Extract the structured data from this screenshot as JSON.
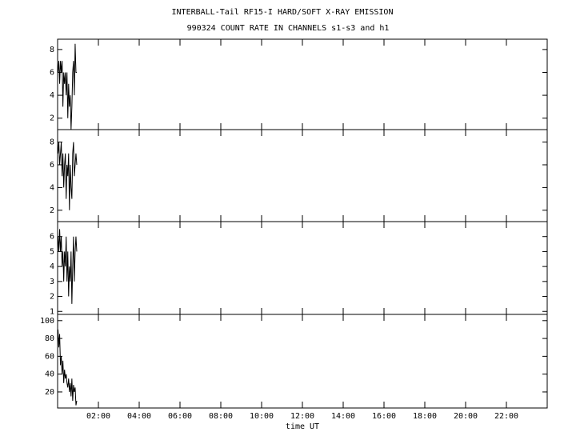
{
  "chart_data": [
    {
      "type": "line",
      "title": "INTERBALL-Tail RF15-I HARD/SOFT X-RAY EMISSION",
      "subtitle": "990324  COUNT RATE IN CHANNELS s1-s3 and h1",
      "x": [
        0.02,
        0.06,
        0.1,
        0.14,
        0.18,
        0.22,
        0.26,
        0.3,
        0.34,
        0.38,
        0.42,
        0.46,
        0.5,
        0.54,
        0.58,
        0.62,
        0.66,
        0.7,
        0.74,
        0.78,
        0.82,
        0.86,
        0.9,
        0.94
      ],
      "values": [
        6,
        7,
        5,
        7,
        6,
        7,
        3,
        6,
        5,
        6,
        4,
        6,
        2,
        5,
        3,
        4,
        1,
        3,
        6,
        7,
        4,
        8.5,
        6,
        6
      ],
      "ylim": [
        1,
        8.9
      ],
      "yticks": [
        2,
        4,
        6,
        8
      ]
    },
    {
      "type": "line",
      "x": [
        0.02,
        0.06,
        0.1,
        0.14,
        0.18,
        0.22,
        0.26,
        0.3,
        0.34,
        0.38,
        0.42,
        0.46,
        0.5,
        0.54,
        0.58,
        0.62,
        0.66,
        0.7,
        0.74,
        0.78,
        0.82,
        0.86,
        0.9,
        0.94
      ],
      "values": [
        7,
        8,
        6,
        7,
        8,
        5,
        7,
        4,
        6,
        7,
        3,
        6,
        5,
        7,
        2,
        6,
        4,
        3,
        7,
        8,
        5,
        6,
        7,
        6
      ],
      "ylim": [
        1,
        9.1
      ],
      "yticks": [
        2,
        4,
        6,
        8
      ]
    },
    {
      "type": "line",
      "x": [
        0.02,
        0.06,
        0.1,
        0.14,
        0.18,
        0.22,
        0.26,
        0.3,
        0.34,
        0.38,
        0.42,
        0.46,
        0.5,
        0.54,
        0.58,
        0.62,
        0.66,
        0.7,
        0.74,
        0.78,
        0.82,
        0.86,
        0.9,
        0.94
      ],
      "values": [
        6,
        5,
        6.5,
        5,
        6,
        4,
        5,
        3,
        5,
        4,
        6,
        3,
        5,
        2,
        4,
        3,
        5,
        1.5,
        4,
        6,
        3,
        5,
        6,
        5
      ],
      "ylim": [
        0.8,
        7
      ],
      "yticks": [
        1,
        2,
        3,
        4,
        5,
        6
      ]
    },
    {
      "type": "line",
      "xlabel": "time UT",
      "x": [
        0.02,
        0.06,
        0.1,
        0.14,
        0.18,
        0.22,
        0.26,
        0.3,
        0.34,
        0.38,
        0.42,
        0.46,
        0.5,
        0.54,
        0.58,
        0.62,
        0.66,
        0.7,
        0.74,
        0.78,
        0.82,
        0.86,
        0.9,
        0.94
      ],
      "values": [
        90,
        70,
        85,
        50,
        60,
        40,
        55,
        30,
        45,
        35,
        40,
        30,
        25,
        35,
        20,
        30,
        15,
        35,
        10,
        28,
        20,
        25,
        5,
        10
      ],
      "ylim": [
        2,
        107
      ],
      "yticks": [
        20,
        40,
        60,
        80,
        100
      ],
      "xlim": [
        0,
        24
      ],
      "xticks": [
        {
          "value": 2,
          "label": "02:00"
        },
        {
          "value": 4,
          "label": "04:00"
        },
        {
          "value": 6,
          "label": "06:00"
        },
        {
          "value": 8,
          "label": "08:00"
        },
        {
          "value": 10,
          "label": "10:00"
        },
        {
          "value": 12,
          "label": "12:00"
        },
        {
          "value": 14,
          "label": "14:00"
        },
        {
          "value": 16,
          "label": "16:00"
        },
        {
          "value": 18,
          "label": "18:00"
        },
        {
          "value": 20,
          "label": "20:00"
        },
        {
          "value": 22,
          "label": "22:00"
        }
      ]
    }
  ]
}
